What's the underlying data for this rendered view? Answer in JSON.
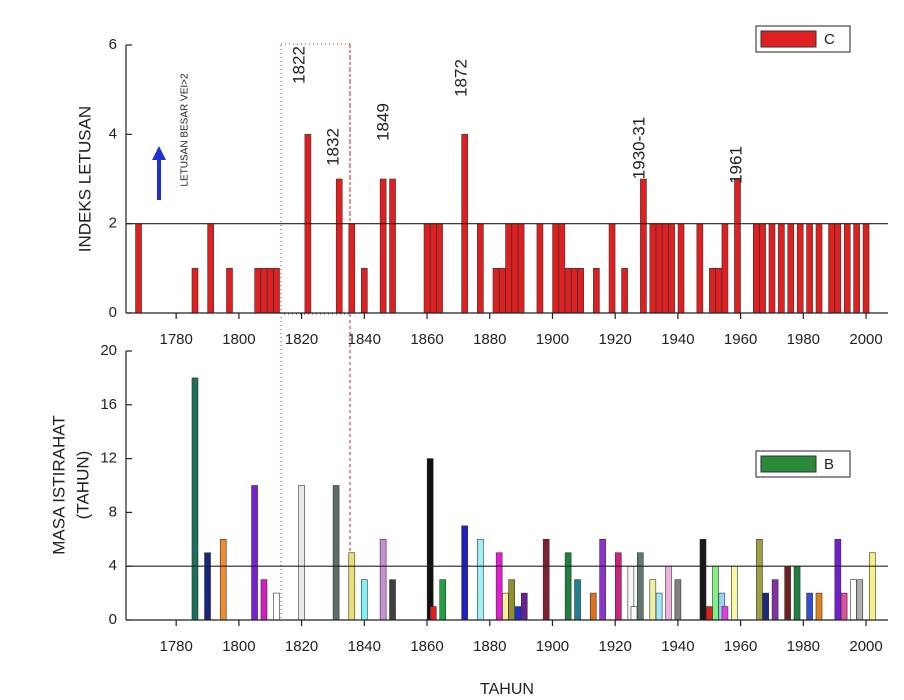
{
  "chart_data": [
    {
      "type": "bar",
      "y_label": "INDEKS LETUSAN",
      "annotations": [
        "1822",
        "1832",
        "1849",
        "1872",
        "1930-31",
        "1961",
        "LETUSAN BESAR VEI>2"
      ],
      "x": [
        1768,
        1786,
        1791,
        1797,
        1806,
        1808,
        1810,
        1812,
        1822,
        1832,
        1836,
        1840,
        1846,
        1849,
        1860,
        1862,
        1864,
        1872,
        1877,
        1882,
        1884,
        1886,
        1888,
        1890,
        1896,
        1901,
        1903,
        1905,
        1907,
        1909,
        1914,
        1919,
        1923,
        1929,
        1932,
        1934,
        1936,
        1938,
        1941,
        1947,
        1951,
        1953,
        1955,
        1959,
        1965,
        1967,
        1970,
        1973,
        1976,
        1979,
        1982,
        1985,
        1989,
        1991,
        1994,
        1997,
        2000
      ],
      "series": [
        {
          "name": "C",
          "color": "#e02020",
          "values": [
            2,
            1,
            2,
            1,
            1,
            1,
            1,
            1,
            4,
            3,
            2,
            1,
            3,
            3,
            2,
            2,
            2,
            4,
            2,
            1,
            1,
            2,
            2,
            2,
            2,
            2,
            2,
            1,
            1,
            1,
            1,
            2,
            1,
            3,
            2,
            2,
            2,
            2,
            2,
            2,
            1,
            1,
            2,
            3,
            2,
            2,
            2,
            2,
            2,
            2,
            2,
            2,
            2,
            2,
            2,
            2,
            2
          ]
        }
      ],
      "reference_line": 2,
      "xlim": [
        1764,
        2007
      ],
      "xticks": [
        1780,
        1800,
        1820,
        1840,
        1860,
        1880,
        1900,
        1920,
        1940,
        1960,
        1980,
        2000
      ],
      "ylim": [
        0,
        6
      ],
      "yticks": [
        0,
        2,
        4,
        6
      ],
      "legend": "top-right"
    },
    {
      "type": "bar",
      "y_label": [
        "MASA ISTIRAHAT",
        "(TAHUN)"
      ],
      "x_label": "TAHUN",
      "x": [
        1786,
        1790,
        1795,
        1805,
        1808,
        1812,
        1820,
        1831,
        1836,
        1840,
        1846,
        1849,
        1861,
        1862,
        1865,
        1872,
        1877,
        1883,
        1885,
        1887,
        1889,
        1891,
        1898,
        1905,
        1908,
        1913,
        1916,
        1921,
        1925,
        1926,
        1928,
        1932,
        1934,
        1937,
        1940,
        1948,
        1950,
        1952,
        1954,
        1955,
        1958,
        1966,
        1968,
        1971,
        1975,
        1978,
        1982,
        1985,
        1991,
        1993,
        1996,
        1998,
        2002
      ],
      "series": [
        {
          "name": "B",
          "color": "#2a8a3a",
          "values": [
            18,
            5,
            6,
            10,
            3,
            2,
            10,
            10,
            5,
            3,
            6,
            3,
            12,
            1,
            3,
            7,
            6,
            5,
            2,
            3,
            1,
            2,
            6,
            5,
            3,
            2,
            6,
            5,
            4,
            1,
            5,
            3,
            2,
            4,
            3,
            6,
            1,
            4,
            2,
            1,
            4,
            6,
            2,
            3,
            4,
            4,
            2,
            2,
            6,
            2,
            3,
            3,
            5
          ]
        }
      ],
      "bar_colors": [
        "#1e6e5a",
        "#1a237e",
        "#f08c30",
        "#7b1fd0",
        "#d020c0",
        "#ffffff",
        "#e8e8e8",
        "#5e6e66",
        "#e8e070",
        "#80f0f8",
        "#c890d8",
        "#404040",
        "#101010",
        "#e02020",
        "#20a040",
        "#2020c0",
        "#a0f0f8",
        "#e020d0",
        "#f8f0a0",
        "#909030",
        "#2030d0",
        "#6a2090",
        "#802030",
        "#208040",
        "#208090",
        "#e07020",
        "#9030d0",
        "#d02080",
        "#f8f8f8",
        "#ffffff",
        "#607870",
        "#f0f0a0",
        "#a0e8f8",
        "#f0b0e0",
        "#808080",
        "#181818",
        "#e02020",
        "#80f080",
        "#a0d0f8",
        "#e040e0",
        "#f8f8a0",
        "#a0a040",
        "#1a2a80",
        "#8030a0",
        "#702020",
        "#208040",
        "#3050d0",
        "#e08020",
        "#7020d0",
        "#e050a0",
        "#ffffff",
        "#b0b0b0",
        "#f8f080"
      ],
      "reference_line": 4,
      "xlim": [
        1764,
        2007
      ],
      "xticks": [
        1780,
        1800,
        1820,
        1840,
        1860,
        1880,
        1900,
        1920,
        1940,
        1960,
        1980,
        2000
      ],
      "ylim": [
        0,
        20
      ],
      "yticks": [
        0,
        4,
        8,
        12,
        16,
        20
      ],
      "legend": "top-right"
    }
  ]
}
